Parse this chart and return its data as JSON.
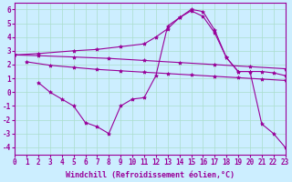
{
  "background_color": "#cceeff",
  "grid_color": "#aaddcc",
  "line_color": "#990099",
  "xlabel": "Windchill (Refroidissement éolien,°C)",
  "xlim": [
    0,
    23
  ],
  "ylim": [
    -4.5,
    6.5
  ],
  "yticks": [
    -4,
    -3,
    -2,
    -1,
    0,
    1,
    2,
    3,
    4,
    5,
    6
  ],
  "xticks": [
    0,
    1,
    2,
    3,
    4,
    5,
    6,
    7,
    8,
    9,
    10,
    11,
    12,
    13,
    14,
    15,
    16,
    17,
    18,
    19,
    20,
    21,
    22,
    23
  ],
  "line1_x": [
    0,
    2,
    5,
    7,
    9,
    11,
    12,
    13,
    14,
    15,
    16,
    17,
    18,
    19,
    20,
    21,
    22,
    23
  ],
  "line1_y": [
    2.7,
    2.8,
    3.0,
    3.1,
    3.3,
    3.5,
    4.0,
    4.6,
    5.4,
    5.9,
    5.5,
    4.3,
    2.5,
    1.5,
    1.5,
    1.5,
    1.4,
    1.2
  ],
  "line2_x": [
    0,
    2,
    5,
    8,
    11,
    14,
    17,
    20,
    23
  ],
  "line2_y": [
    2.7,
    2.65,
    2.55,
    2.45,
    2.3,
    2.15,
    2.0,
    1.85,
    1.7
  ],
  "line3_x": [
    1,
    3,
    5,
    7,
    9,
    11,
    13,
    15,
    17,
    19,
    21,
    23
  ],
  "line3_y": [
    2.2,
    1.95,
    1.8,
    1.65,
    1.55,
    1.45,
    1.35,
    1.25,
    1.15,
    1.05,
    0.95,
    0.85
  ],
  "line4_x": [
    2,
    3,
    4,
    5,
    6,
    7,
    8,
    9,
    10,
    11,
    12,
    13,
    14,
    15,
    16,
    17,
    18,
    19,
    20,
    21,
    22,
    23
  ],
  "line4_y": [
    0.7,
    0.0,
    -0.5,
    -1.0,
    -2.2,
    -2.5,
    -3.0,
    -1.0,
    -0.5,
    -0.4,
    1.2,
    4.8,
    5.4,
    6.0,
    5.85,
    4.5,
    2.5,
    1.5,
    1.5,
    -2.3,
    -3.0,
    -4.0
  ],
  "markersize": 3,
  "linewidth": 0.8,
  "font_family": "monospace",
  "xlabel_fontsize": 6,
  "tick_fontsize": 5.5
}
